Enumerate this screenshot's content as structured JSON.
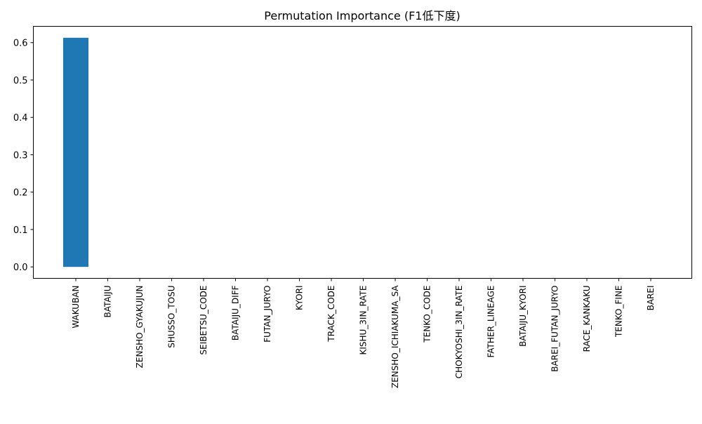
{
  "chart_data": {
    "type": "bar",
    "title": "Permutation Importance (F1低下度)",
    "xlabel": "",
    "ylabel": "",
    "categories": [
      "WAKUBAN",
      "BATAIJU",
      "ZENSHO_GYAKUJUN",
      "SHUSSO_TOSU",
      "SEIBETSU_CODE",
      "BATAIJU_DIFF",
      "FUTAN_JURYO",
      "KYORI",
      "TRACK_CODE",
      "KISHU_3IN_RATE",
      "ZENSHO_ICHIAKUMA_SA",
      "TENKO_CODE",
      "CHOKYOSHI_3IN_RATE",
      "FATHER_LINEAGE",
      "BATAIJU_KYORI",
      "BAREI_FUTAN_JURYO",
      "RACE_KANKAKU",
      "TENKO_FINE",
      "BAREI"
    ],
    "values": [
      0.613,
      0,
      0,
      0,
      0,
      0,
      0,
      0,
      0,
      0,
      0,
      0,
      0,
      0,
      0,
      0,
      0,
      0,
      0
    ],
    "ylim": [
      -0.0306,
      0.6436
    ],
    "yticks": [
      0.0,
      0.1,
      0.2,
      0.3,
      0.4,
      0.5,
      0.6
    ],
    "ytick_labels": [
      "0.0",
      "0.1",
      "0.2",
      "0.3",
      "0.4",
      "0.5",
      "0.6"
    ],
    "grid": false,
    "legend": "none",
    "bar_color": "#1f77b4"
  }
}
